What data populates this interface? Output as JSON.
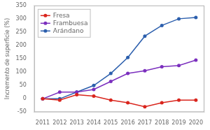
{
  "chart_data": {
    "type": "line",
    "y_label": "Incremento de superficie (%)",
    "x": [
      2011,
      2012,
      2013,
      2014,
      2015,
      2016,
      2017,
      2018,
      2019,
      2020
    ],
    "series": [
      {
        "name": "Fresa",
        "color": "#d9251d",
        "marker": "circle",
        "values": [
          0,
          -5,
          15,
          10,
          -5,
          -15,
          -30,
          -15,
          -5,
          -5
        ]
      },
      {
        "name": "Frambuesa",
        "color": "#7b2fbe",
        "marker": "circle",
        "values": [
          0,
          25,
          25,
          35,
          65,
          95,
          105,
          120,
          125,
          145
        ]
      },
      {
        "name": "Arándano",
        "color": "#2c5fad",
        "marker": "circle",
        "values": [
          0,
          0,
          25,
          50,
          95,
          155,
          235,
          275,
          300,
          305
        ]
      }
    ],
    "xlim": [
      2010.5,
      2020.5
    ],
    "xticks": [
      2011,
      2012,
      2013,
      2014,
      2015,
      2016,
      2017,
      2018,
      2019,
      2020
    ],
    "ylim": [
      -50,
      350
    ],
    "yticks": [
      -50,
      0,
      50,
      100,
      150,
      200,
      250,
      300,
      350
    ],
    "grid": false,
    "legend": "upper left"
  }
}
